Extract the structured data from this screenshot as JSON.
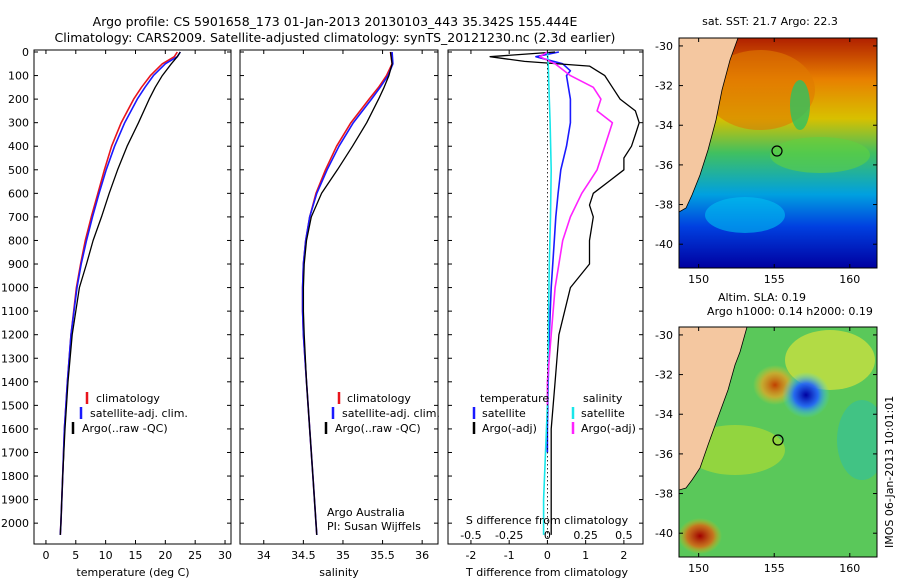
{
  "title_line1": "Argo profile: CS 5901658_173 01-Jan-2013 20130103_443 35.342S 155.444E",
  "title_line2": "Climatology: CARS2009. Satellite-adjusted climatology: synTS_20121230.nc (2.3d earlier)",
  "colors": {
    "clim": "#e8141c",
    "sat": "#1a1aff",
    "argo": "#000000",
    "tsat": "#18e6ea",
    "targo": "#ff22ff"
  },
  "chart_data": [
    {
      "type": "line",
      "name": "temperature",
      "xlabel": "temperature (deg C)",
      "ylabel": "",
      "xlim": [
        -2,
        31
      ],
      "ylim": [
        2080,
        0
      ],
      "xticks": [
        0,
        5,
        10,
        15,
        20,
        25,
        30
      ],
      "yticks": [
        0,
        100,
        200,
        300,
        400,
        500,
        600,
        700,
        800,
        900,
        1000,
        1100,
        1200,
        1300,
        1400,
        1500,
        1600,
        1700,
        1800,
        1900,
        2000
      ],
      "legend": [
        "climatology",
        "satellite-adj. clim.",
        "Argo(..raw -QC)"
      ],
      "series": [
        {
          "name": "climatology",
          "depth": [
            0,
            20,
            50,
            100,
            150,
            200,
            300,
            400,
            500,
            600,
            700,
            800,
            900,
            1000,
            1200,
            1400,
            1600,
            1800,
            2000,
            2050
          ],
          "values": [
            22,
            21.5,
            19.5,
            17.5,
            16,
            14.7,
            12.6,
            11,
            9.8,
            8.7,
            7.6,
            6.6,
            5.8,
            5.1,
            4.2,
            3.6,
            3.1,
            2.8,
            2.5,
            2.4
          ]
        },
        {
          "name": "satellite-adj. clim.",
          "depth": [
            0,
            20,
            50,
            100,
            150,
            200,
            300,
            400,
            500,
            600,
            700,
            800,
            900,
            1000,
            1200,
            1400,
            1600,
            1800,
            2000,
            2050
          ],
          "values": [
            22.5,
            22,
            20,
            18,
            16.6,
            15.3,
            13.2,
            11.5,
            10.1,
            8.9,
            7.8,
            6.8,
            5.9,
            5.2,
            4.2,
            3.6,
            3.1,
            2.8,
            2.5,
            2.4
          ]
        },
        {
          "name": "Argo(..raw -QC)",
          "depth": [
            0,
            20,
            50,
            100,
            150,
            200,
            300,
            400,
            500,
            600,
            700,
            800,
            900,
            1000,
            1200,
            1400,
            1600,
            1800,
            2000,
            2050
          ],
          "values": [
            22.5,
            22,
            21,
            19.5,
            18.3,
            17.3,
            15.5,
            13.6,
            12,
            10.6,
            9.3,
            7.9,
            6.8,
            5.6,
            4.4,
            3.7,
            3.2,
            2.8,
            2.5,
            2.4
          ]
        }
      ]
    },
    {
      "type": "line",
      "name": "salinity",
      "xlabel": "salinity",
      "ylabel": "",
      "xlim": [
        33.7,
        36.2
      ],
      "ylim": [
        2080,
        0
      ],
      "xticks": [
        34,
        34.5,
        35,
        35.5,
        36
      ],
      "legend": [
        "climatology",
        "satellite-adj. clim.",
        "Argo(..raw -QC)"
      ],
      "annotation": [
        "Argo Australia",
        "PI: Susan Wijffels"
      ],
      "series": [
        {
          "name": "climatology",
          "depth": [
            0,
            50,
            100,
            150,
            200,
            300,
            400,
            500,
            600,
            700,
            800,
            900,
            1000,
            1100,
            1200,
            1400,
            1600,
            1800,
            2000,
            2050
          ],
          "values": [
            35.6,
            35.62,
            35.55,
            35.45,
            35.33,
            35.1,
            34.92,
            34.78,
            34.66,
            34.58,
            34.53,
            34.5,
            34.49,
            34.49,
            34.5,
            34.54,
            34.58,
            34.62,
            34.66,
            34.67
          ]
        },
        {
          "name": "satellite-adj. clim.",
          "depth": [
            0,
            50,
            100,
            150,
            200,
            300,
            400,
            500,
            600,
            700,
            800,
            900,
            1000,
            1100,
            1200,
            1400,
            1600,
            1800,
            2000,
            2050
          ],
          "values": [
            35.62,
            35.63,
            35.57,
            35.47,
            35.36,
            35.13,
            34.95,
            34.8,
            34.67,
            34.58,
            34.53,
            34.5,
            34.49,
            34.49,
            34.5,
            34.54,
            34.58,
            34.62,
            34.66,
            34.67
          ]
        },
        {
          "name": "Argo(..raw -QC)",
          "depth": [
            0,
            50,
            100,
            150,
            200,
            300,
            400,
            500,
            600,
            700,
            800,
            900,
            1000,
            1100,
            1200,
            1400,
            1600,
            1800,
            2000,
            2050
          ],
          "values": [
            35.6,
            35.62,
            35.58,
            35.52,
            35.45,
            35.3,
            35.12,
            34.93,
            34.73,
            34.6,
            34.54,
            34.51,
            34.5,
            34.5,
            34.51,
            34.54,
            34.58,
            34.62,
            34.66,
            34.67
          ]
        }
      ]
    },
    {
      "type": "line",
      "name": "differences",
      "xlabel": "T difference from climatology",
      "xlabel_top": "S difference from climatology",
      "xlim": [
        -2.6,
        2.5
      ],
      "ylim": [
        2080,
        0
      ],
      "xticks": [
        -2,
        -1,
        0,
        1,
        2
      ],
      "xticks_top": [
        {
          "label": "-0.5",
          "value": -2
        },
        {
          "label": "-0.25",
          "value": -1
        },
        {
          "label": "0",
          "value": 0
        },
        {
          "label": "0.25",
          "value": 1
        },
        {
          "label": "0.5",
          "value": 2
        }
      ],
      "legend_temperature": {
        "title": "temperature",
        "items": [
          "satellite",
          "Argo(-adj)"
        ]
      },
      "legend_salinity": {
        "title": "salinity",
        "items": [
          "satellite",
          "Argo(-adj)"
        ]
      },
      "series": [
        {
          "name": "T satellite",
          "depth": [
            0,
            20,
            50,
            80,
            100,
            200,
            300,
            400,
            500,
            600,
            700,
            800,
            1000,
            1200,
            1400,
            1600,
            1700
          ],
          "values": [
            0.3,
            -0.3,
            0.4,
            0.6,
            0.5,
            0.6,
            0.6,
            0.5,
            0.35,
            0.28,
            0.22,
            0.18,
            0.1,
            0.05,
            0.02,
            0,
            0
          ]
        },
        {
          "name": "T Argo(-adj)",
          "depth": [
            0,
            20,
            40,
            60,
            80,
            100,
            150,
            200,
            250,
            300,
            350,
            400,
            450,
            500,
            550,
            600,
            650,
            700,
            800,
            900,
            1000,
            1200,
            1400,
            1600,
            1800,
            2000,
            2050
          ],
          "values": [
            0.2,
            -1.5,
            -0.6,
            1.1,
            1.3,
            1.5,
            1.7,
            1.9,
            2.3,
            2.4,
            2.3,
            2.2,
            2.0,
            2.0,
            1.6,
            1.2,
            1.1,
            1.2,
            1.1,
            1.1,
            0.6,
            0.3,
            0.2,
            0.1,
            0.1,
            0.1,
            0.1
          ]
        },
        {
          "name": "S satellite",
          "depth": [
            0,
            50,
            100,
            200,
            300,
            500,
            700,
            900,
            1100,
            1300,
            1500,
            1700,
            1900,
            2050
          ],
          "values": [
            0,
            0.02,
            0.03,
            0.05,
            0.07,
            0.1,
            0.08,
            0.05,
            0.03,
            0.02,
            0,
            -0.05,
            -0.1,
            -0.1
          ]
        },
        {
          "name": "S Argo(-adj)",
          "depth": [
            0,
            20,
            50,
            100,
            150,
            200,
            250,
            300,
            350,
            400,
            450,
            500,
            550,
            600,
            700,
            800,
            1000,
            1200,
            1400,
            1500
          ],
          "values": [
            0,
            -0.2,
            0.2,
            0.6,
            1.2,
            1.4,
            1.3,
            1.7,
            1.6,
            1.5,
            1.4,
            1.3,
            1.1,
            0.9,
            0.6,
            0.4,
            0.2,
            0.1,
            0,
            0
          ]
        }
      ]
    }
  ],
  "maps": {
    "sst": {
      "title": "sat. SST: 21.7  Argo: 22.3"
    },
    "sla": {
      "title_line1": "Altim. SLA: 0.19",
      "title_line2": "Argo h1000: 0.14 h2000: 0.19"
    },
    "xticks": [
      "150",
      "155",
      "160"
    ],
    "yticks": [
      "-30",
      "-32",
      "-34",
      "-36",
      "-38",
      "-40"
    ]
  },
  "footer": "IMOS 06-Jan-2013 10:01:01"
}
